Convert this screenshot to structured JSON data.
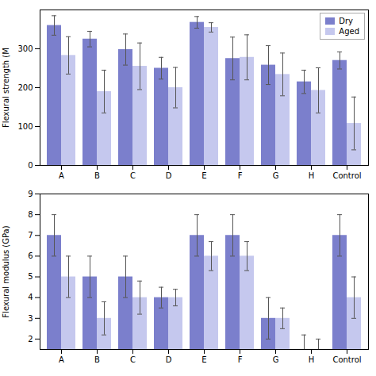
{
  "chart_data": [
    {
      "type": "bar",
      "categories": [
        "A",
        "B",
        "C",
        "D",
        "E",
        "F",
        "G",
        "H",
        "Control"
      ],
      "ylabel": "Flexural strength (M",
      "series": [
        {
          "name": "Dry",
          "color": "#7b7fcc",
          "values": [
            360,
            325,
            298,
            250,
            368,
            275,
            258,
            215,
            270
          ],
          "errors": [
            25,
            20,
            40,
            28,
            15,
            55,
            50,
            30,
            22
          ]
        },
        {
          "name": "Aged",
          "color": "#c5c8ee",
          "values": [
            283,
            190,
            255,
            200,
            355,
            278,
            234,
            193,
            108
          ],
          "errors": [
            48,
            55,
            60,
            52,
            12,
            58,
            55,
            58,
            68
          ]
        }
      ],
      "ylim": [
        0,
        400
      ],
      "yticks": [
        0,
        100,
        200,
        300
      ],
      "legend": "upper right"
    },
    {
      "type": "bar",
      "categories": [
        "A",
        "B",
        "C",
        "D",
        "E",
        "F",
        "G",
        "H",
        "Control"
      ],
      "ylabel": "Flexural modulus (GPa)",
      "series": [
        {
          "name": "Dry",
          "color": "#7b7fcc",
          "values": [
            7.0,
            5.0,
            5.0,
            4.0,
            7.0,
            7.0,
            3.0,
            null,
            7.0
          ],
          "errors": [
            1.0,
            1.0,
            1.0,
            0.5,
            1.0,
            1.0,
            1.0,
            0.7,
            1.0
          ]
        },
        {
          "name": "Aged",
          "color": "#c5c8ee",
          "values": [
            5.0,
            3.0,
            4.0,
            4.0,
            6.0,
            6.0,
            3.0,
            null,
            4.0
          ],
          "errors": [
            1.0,
            0.8,
            0.8,
            0.4,
            0.7,
            0.7,
            0.5,
            0.5,
            1.0
          ]
        }
      ],
      "ylim": [
        1.5,
        9.0
      ],
      "yticks": [
        2,
        3,
        4,
        5,
        6,
        7,
        8,
        9
      ]
    }
  ]
}
